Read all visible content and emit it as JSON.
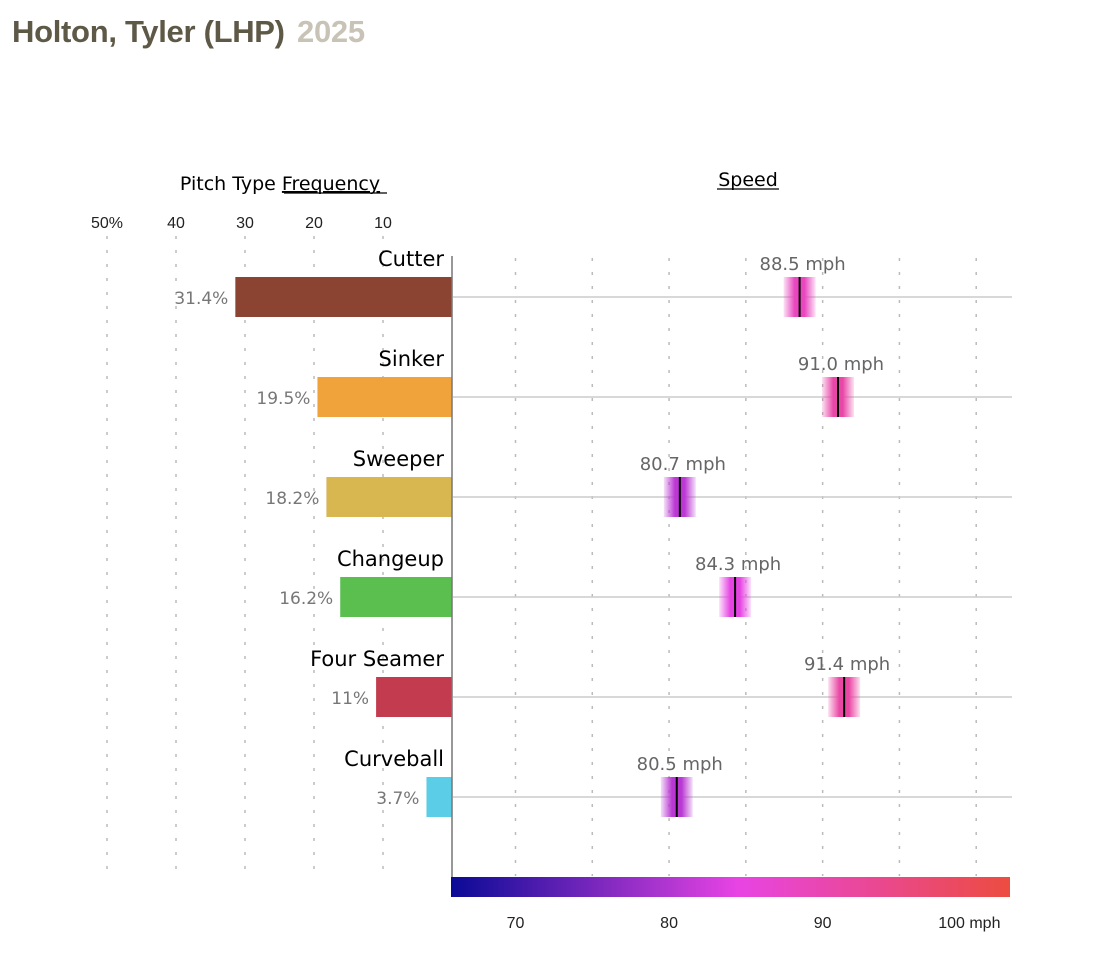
{
  "header": {
    "player": "Holton, Tyler (LHP)",
    "year": "2025"
  },
  "chart_data": [
    {
      "type": "bar",
      "title": "Pitch Type Frequency",
      "title_prefix": "Pitch Type ",
      "title_underlined": "Frequency",
      "orientation": "horizontal-reversed",
      "xlim": [
        0,
        50
      ],
      "x_ticks": [
        {
          "value": 50,
          "label": "50%"
        },
        {
          "value": 40,
          "label": "40"
        },
        {
          "value": 30,
          "label": "30"
        },
        {
          "value": 20,
          "label": "20"
        },
        {
          "value": 10,
          "label": "10"
        }
      ],
      "grid": true,
      "categories": [
        "Cutter",
        "Sinker",
        "Sweeper",
        "Changeup",
        "Four Seamer",
        "Curveball"
      ],
      "values": [
        31.4,
        19.5,
        18.2,
        16.2,
        11,
        3.7
      ],
      "labels": [
        "31.4%",
        "19.5%",
        "18.2%",
        "16.2%",
        "11%",
        "3.7%"
      ],
      "colors": [
        "#8b4332",
        "#f0a23b",
        "#d8b650",
        "#5abf4f",
        "#c23b4e",
        "#5bcde6"
      ]
    },
    {
      "type": "scatter",
      "title": "Speed",
      "xlim": [
        65.8,
        102.2
      ],
      "x_ticks": [
        {
          "value": 70,
          "label": "70"
        },
        {
          "value": 80,
          "label": "80"
        },
        {
          "value": 90,
          "label": "90"
        },
        {
          "value": 100,
          "label": "100 mph"
        }
      ],
      "grid_values": [
        70,
        75,
        80,
        85,
        90,
        95,
        100
      ],
      "grid": true,
      "categories": [
        "Cutter",
        "Sinker",
        "Sweeper",
        "Changeup",
        "Four Seamer",
        "Curveball"
      ],
      "values": [
        88.5,
        91.0,
        80.7,
        84.3,
        91.4,
        80.5
      ],
      "labels": [
        "88.5 mph",
        "91.0 mph",
        "80.7 mph",
        "84.3 mph",
        "91.4 mph",
        "80.5 mph"
      ],
      "colorscale": {
        "stops": [
          {
            "value": 65.8,
            "color": "#0a0a96"
          },
          {
            "value": 84.5,
            "color": "#e844e4"
          },
          {
            "value": 102.2,
            "color": "#ec4c40"
          }
        ]
      }
    }
  ]
}
